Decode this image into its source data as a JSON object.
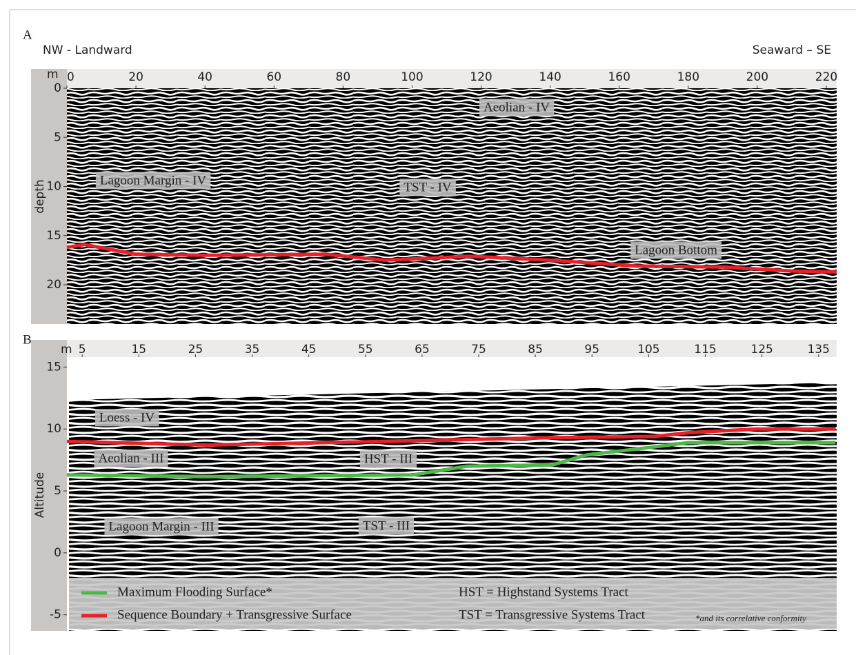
{
  "chart_data": [
    {
      "type": "line",
      "panel_label": "A",
      "left_label": "NW - Landward",
      "right_label": "Seaward – SE",
      "x_axis_label": "m",
      "y_axis_label": "depth",
      "xlim": [
        0,
        223
      ],
      "xticks": [
        0,
        20,
        40,
        60,
        80,
        100,
        120,
        140,
        160,
        180,
        200,
        220
      ],
      "ylim": [
        0,
        24
      ],
      "y_inverted": true,
      "yticks": [
        0,
        5,
        10,
        15,
        20
      ],
      "series": [
        {
          "color": "#e8202a",
          "x": [
            0,
            5,
            20,
            40,
            75,
            92,
            117,
            140,
            165,
            190,
            210,
            223
          ],
          "values": [
            16.2,
            15.9,
            16.9,
            17.0,
            16.9,
            17.5,
            17.1,
            17.5,
            18.1,
            18.2,
            18.6,
            18.7
          ]
        }
      ],
      "annotations": [
        "Aeolian - IV",
        "Lagoon Margin - IV",
        "TST - IV",
        "Lagoon Bottom"
      ]
    },
    {
      "type": "line",
      "panel_label": "B",
      "x_axis_label": "m",
      "y_axis_label": "Altitude",
      "xlim": [
        2.3,
        138.2
      ],
      "xticks": [
        5,
        15,
        25,
        35,
        45,
        55,
        65,
        75,
        85,
        95,
        105,
        115,
        125,
        135
      ],
      "ylim": [
        -6.3,
        15.8
      ],
      "yticks": [
        -5,
        0,
        5,
        10,
        15
      ],
      "series": [
        {
          "name": "Maximum Flooding Surface*",
          "color": "#4cb848",
          "x": [
            2.3,
            27,
            63.5,
            73,
            88,
            94,
            106,
            112,
            138
          ],
          "values": [
            6.3,
            6.15,
            6.3,
            7.0,
            7.1,
            7.9,
            8.55,
            8.9,
            8.9
          ]
        },
        {
          "name": "Sequence Boundary + Transgressive Surface",
          "color": "#e8202a",
          "x": [
            2.3,
            27,
            63.5,
            88,
            106,
            112,
            124,
            138
          ],
          "values": [
            9.0,
            8.7,
            9.05,
            9.3,
            9.4,
            9.7,
            10.0,
            10.0
          ]
        }
      ],
      "annotations": [
        "Loess - IV",
        "Aeolian - III",
        "HST - III",
        "Lagoon Margin - III",
        "TST - III"
      ],
      "notes": [
        "HST = Highstand Systems Tract",
        "TST = Transgressive Systems Tract",
        "*and its correlative conformity"
      ]
    }
  ]
}
